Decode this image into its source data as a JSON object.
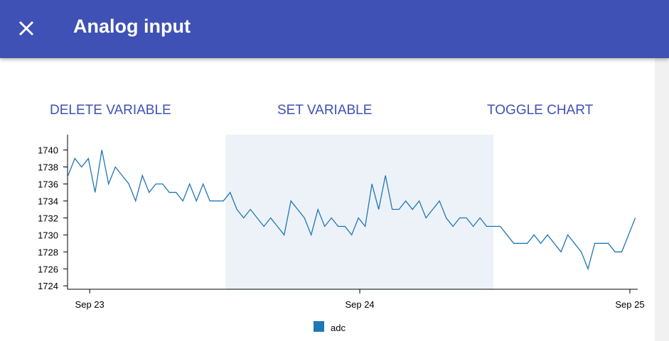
{
  "header": {
    "title": "Analog input"
  },
  "buttons": [
    "DELETE VARIABLE",
    "SET VARIABLE",
    "TOGGLE CHART"
  ],
  "chart_data": {
    "type": "line",
    "x": [
      -0.08,
      -0.055,
      -0.03,
      -0.005,
      0.02,
      0.045,
      0.07,
      0.095,
      0.12,
      0.145,
      0.17,
      0.195,
      0.22,
      0.245,
      0.27,
      0.295,
      0.32,
      0.345,
      0.37,
      0.395,
      0.42,
      0.445,
      0.47,
      0.495,
      0.52,
      0.545,
      0.57,
      0.595,
      0.62,
      0.645,
      0.67,
      0.695,
      0.72,
      0.745,
      0.77,
      0.795,
      0.82,
      0.845,
      0.87,
      0.895,
      0.92,
      0.945,
      0.97,
      0.995,
      1.02,
      1.045,
      1.07,
      1.095,
      1.12,
      1.145,
      1.17,
      1.195,
      1.22,
      1.245,
      1.27,
      1.295,
      1.32,
      1.345,
      1.37,
      1.395,
      1.42,
      1.445,
      1.47,
      1.495,
      1.52,
      1.545,
      1.57,
      1.595,
      1.62,
      1.645,
      1.67,
      1.695,
      1.72,
      1.745,
      1.77,
      1.795,
      1.82,
      1.845,
      1.87,
      1.895,
      1.92,
      1.945,
      1.97,
      1.995,
      2.02
    ],
    "series": [
      {
        "name": "adc",
        "color": "#1f77b4",
        "values": [
          1737,
          1739,
          1738,
          1739,
          1735,
          1740,
          1736,
          1738,
          1737,
          1736,
          1734,
          1737,
          1735,
          1736,
          1736,
          1735,
          1735,
          1734,
          1736,
          1734,
          1736,
          1734,
          1734,
          1734,
          1735,
          1733,
          1732,
          1733,
          1732,
          1731,
          1732,
          1731,
          1730,
          1734,
          1733,
          1732,
          1730,
          1733,
          1731,
          1732,
          1731,
          1731,
          1730,
          1732,
          1731,
          1736,
          1733,
          1737,
          1733,
          1733,
          1734,
          1733,
          1734,
          1732,
          1733,
          1734,
          1732,
          1731,
          1732,
          1732,
          1731,
          1732,
          1731,
          1731,
          1731,
          1730,
          1729,
          1729,
          1729,
          1730,
          1729,
          1730,
          1729,
          1728,
          1730,
          1729,
          1728,
          1726,
          1729,
          1729,
          1729,
          1728,
          1728,
          1730,
          1732
        ]
      }
    ],
    "xlim": [
      -0.082,
      2.029
    ],
    "xticks": [
      {
        "value": 0,
        "label": "Sep 23"
      },
      {
        "value": 1,
        "label": "Sep 24"
      },
      {
        "value": 2,
        "label": "Sep 25"
      }
    ],
    "ylim": [
      1723.6,
      1741.8
    ],
    "yticks": [
      1724,
      1726,
      1728,
      1730,
      1732,
      1734,
      1736,
      1738,
      1740
    ],
    "highlight_x": [
      0.503,
      1.495
    ],
    "highlight_color": "#edf2f9",
    "legend": "bottom"
  }
}
